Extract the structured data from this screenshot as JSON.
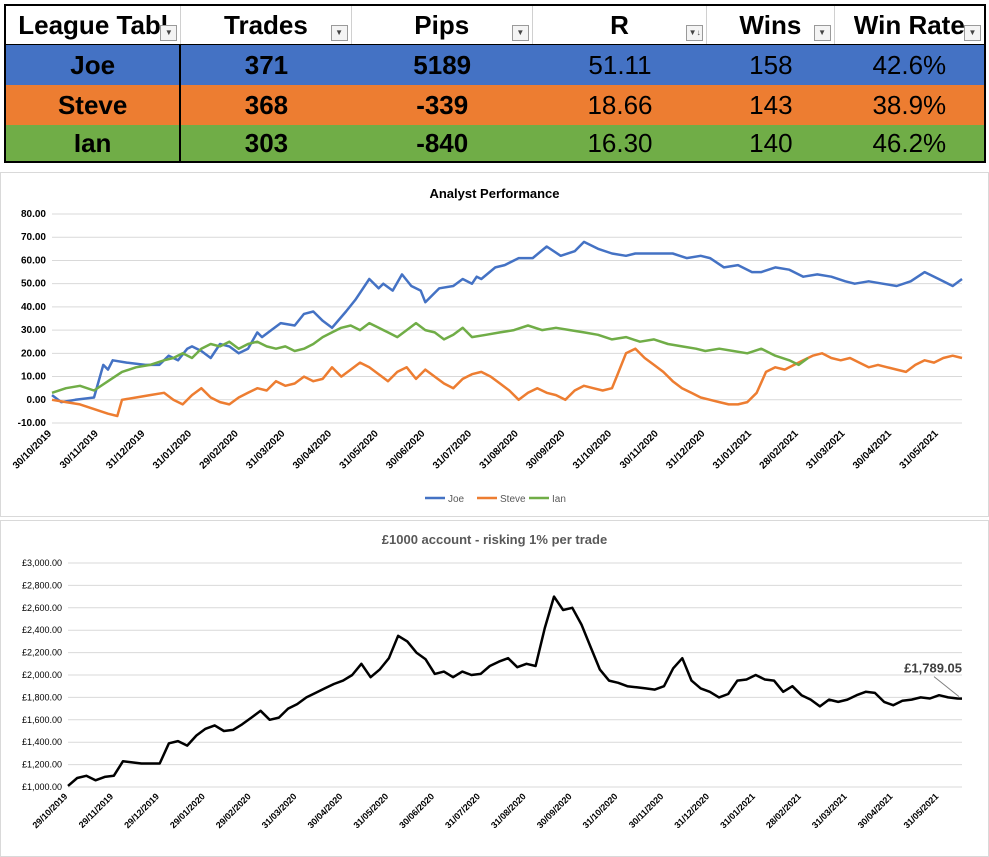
{
  "table": {
    "headers": [
      "League Tabl",
      "Trades",
      "Pips",
      "R",
      "Wins",
      "Win Rate"
    ],
    "rows": [
      {
        "name": "Joe",
        "trades": "371",
        "pips": "5189",
        "r": "51.11",
        "wins": "158",
        "win_rate": "42.6%",
        "color": "#4472C4"
      },
      {
        "name": "Steve",
        "trades": "368",
        "pips": "-339",
        "r": "18.66",
        "wins": "143",
        "win_rate": "38.9%",
        "color": "#ED7D31"
      },
      {
        "name": "Ian",
        "trades": "303",
        "pips": "-840",
        "r": "16.30",
        "wins": "140",
        "win_rate": "46.2%",
        "color": "#70AD47"
      }
    ]
  },
  "chart_data": [
    {
      "type": "line",
      "title": "Analyst Performance",
      "ylim": [
        -10,
        80
      ],
      "yticks": [
        "-10.00",
        "0.00",
        "10.00",
        "20.00",
        "30.00",
        "40.00",
        "50.00",
        "60.00",
        "70.00",
        "80.00"
      ],
      "xticks": [
        "30/10/2019",
        "30/11/2019",
        "31/12/2019",
        "31/01/2020",
        "29/02/2020",
        "31/03/2020",
        "30/04/2020",
        "31/05/2020",
        "30/06/2020",
        "31/07/2020",
        "31/08/2020",
        "30/09/2020",
        "31/10/2020",
        "30/11/2020",
        "31/12/2020",
        "31/01/2021",
        "28/02/2021",
        "31/03/2021",
        "30/04/2021",
        "31/05/2021"
      ],
      "grid": true,
      "legend": "bottom",
      "x_index_range": [
        0,
        19.5
      ],
      "series": [
        {
          "name": "Joe",
          "color": "#4472C4",
          "x": [
            0,
            0.2,
            0.5,
            0.9,
            1.1,
            1.2,
            1.3,
            1.6,
            2.0,
            2.3,
            2.5,
            2.7,
            2.9,
            3.0,
            3.2,
            3.4,
            3.6,
            3.8,
            4.0,
            4.2,
            4.4,
            4.5,
            4.7,
            4.9,
            5.2,
            5.4,
            5.6,
            5.8,
            6.0,
            6.3,
            6.5,
            6.8,
            7.0,
            7.1,
            7.3,
            7.5,
            7.7,
            7.9,
            8.0,
            8.3,
            8.6,
            8.8,
            9.0,
            9.1,
            9.2,
            9.5,
            9.7,
            10.0,
            10.3,
            10.6,
            10.9,
            11.2,
            11.4,
            11.7,
            12.0,
            12.3,
            12.5,
            12.8,
            13.0,
            13.3,
            13.6,
            13.9,
            14.1,
            14.4,
            14.7,
            15.0,
            15.2,
            15.5,
            15.8,
            16.1,
            16.4,
            16.7,
            17.0,
            17.2,
            17.5,
            17.8,
            18.1,
            18.4,
            18.7,
            19.0,
            19.3,
            19.5
          ],
          "y": [
            2,
            -1,
            0,
            1,
            15,
            13,
            17,
            16,
            15,
            15,
            19,
            17,
            22,
            23,
            21,
            18,
            24,
            23,
            20,
            22,
            29,
            27,
            30,
            33,
            32,
            37,
            38,
            34,
            31,
            38,
            43,
            52,
            48,
            50,
            47,
            54,
            49,
            47,
            42,
            48,
            49,
            52,
            50,
            53,
            52,
            57,
            58,
            61,
            61,
            66,
            62,
            64,
            68,
            65,
            63,
            62,
            63,
            63,
            63,
            63,
            61,
            62,
            61,
            57,
            58,
            55,
            55,
            57,
            56,
            53,
            54,
            53,
            51,
            50,
            51,
            50,
            49,
            51,
            55,
            52,
            49,
            52
          ]
        },
        {
          "name": "Steve",
          "color": "#ED7D31",
          "x": [
            0,
            0.3,
            0.6,
            0.9,
            1.2,
            1.4,
            1.5,
            1.8,
            2.1,
            2.4,
            2.6,
            2.8,
            3.0,
            3.2,
            3.4,
            3.6,
            3.8,
            4.0,
            4.2,
            4.4,
            4.6,
            4.8,
            5.0,
            5.2,
            5.4,
            5.6,
            5.8,
            6.0,
            6.2,
            6.4,
            6.6,
            6.8,
            7.0,
            7.2,
            7.4,
            7.6,
            7.8,
            8.0,
            8.2,
            8.4,
            8.6,
            8.8,
            9.0,
            9.2,
            9.4,
            9.6,
            9.8,
            10.0,
            10.2,
            10.4,
            10.6,
            10.8,
            11.0,
            11.2,
            11.4,
            11.6,
            11.8,
            12.0,
            12.1,
            12.3,
            12.5,
            12.7,
            12.9,
            13.1,
            13.3,
            13.5,
            13.7,
            13.9,
            14.1,
            14.3,
            14.5,
            14.7,
            14.9,
            15.1,
            15.3,
            15.5,
            15.7,
            15.9,
            16.1,
            16.3,
            16.5,
            16.7,
            16.9,
            17.1,
            17.3,
            17.5,
            17.7,
            17.9,
            18.1,
            18.3,
            18.5,
            18.7,
            18.9,
            19.1,
            19.3,
            19.5
          ],
          "y": [
            0,
            -1,
            -2,
            -4,
            -6,
            -7,
            0,
            1,
            2,
            3,
            0,
            -2,
            2,
            5,
            1,
            -1,
            -2,
            1,
            3,
            5,
            4,
            8,
            6,
            7,
            10,
            8,
            9,
            14,
            10,
            13,
            16,
            14,
            11,
            8,
            12,
            14,
            9,
            13,
            10,
            7,
            5,
            9,
            11,
            12,
            10,
            7,
            4,
            0,
            3,
            5,
            3,
            2,
            0,
            4,
            6,
            5,
            4,
            5,
            10,
            20,
            22,
            18,
            15,
            12,
            8,
            5,
            3,
            1,
            0,
            -1,
            -2,
            -2,
            -1,
            3,
            12,
            14,
            13,
            15,
            17,
            19,
            20,
            18,
            17,
            18,
            16,
            14,
            15,
            14,
            13,
            12,
            15,
            17,
            16,
            18,
            19,
            18
          ]
        },
        {
          "name": "Ian",
          "color": "#70AD47",
          "x": [
            0,
            0.3,
            0.6,
            0.9,
            1.2,
            1.5,
            1.8,
            2.1,
            2.4,
            2.6,
            2.8,
            3.0,
            3.2,
            3.4,
            3.6,
            3.8,
            4.0,
            4.2,
            4.4,
            4.6,
            4.8,
            5.0,
            5.2,
            5.4,
            5.6,
            5.8,
            6.0,
            6.2,
            6.4,
            6.6,
            6.8,
            7.0,
            7.2,
            7.4,
            7.6,
            7.8,
            8.0,
            8.2,
            8.4,
            8.6,
            8.8,
            9.0,
            9.3,
            9.6,
            9.9,
            10.2,
            10.5,
            10.8,
            11.1,
            11.4,
            11.7,
            12.0,
            12.3,
            12.6,
            12.9,
            13.2,
            13.5,
            13.8,
            14.0,
            14.3,
            14.6,
            14.9,
            15.2,
            15.5,
            15.8,
            16.0,
            16.2
          ],
          "y": [
            3,
            5,
            6,
            4,
            8,
            12,
            14,
            15,
            17,
            18,
            20,
            18,
            22,
            24,
            23,
            25,
            22,
            24,
            25,
            23,
            22,
            23,
            21,
            22,
            24,
            27,
            29,
            31,
            32,
            30,
            33,
            31,
            29,
            27,
            30,
            33,
            30,
            29,
            26,
            28,
            31,
            27,
            28,
            29,
            30,
            32,
            30,
            31,
            30,
            29,
            28,
            26,
            27,
            25,
            26,
            24,
            23,
            22,
            21,
            22,
            21,
            20,
            22,
            19,
            17,
            15,
            18
          ]
        }
      ]
    },
    {
      "type": "line",
      "title": "£1000 account - risking 1% per trade",
      "ylim": [
        1000,
        3000
      ],
      "yticks": [
        "£1,000.00",
        "£1,200.00",
        "£1,400.00",
        "£1,600.00",
        "£1,800.00",
        "£2,000.00",
        "£2,200.00",
        "£2,400.00",
        "£2,600.00",
        "£2,800.00",
        "£3,000.00"
      ],
      "xticks": [
        "29/10/2019",
        "29/11/2019",
        "29/12/2019",
        "29/01/2020",
        "29/02/2020",
        "31/03/2020",
        "30/04/2020",
        "31/05/2020",
        "30/06/2020",
        "31/07/2020",
        "31/08/2020",
        "30/09/2020",
        "31/10/2020",
        "30/11/2020",
        "31/12/2020",
        "31/01/2021",
        "28/02/2021",
        "31/03/2021",
        "30/04/2021",
        "31/05/2021"
      ],
      "grid": true,
      "annotation": "£1,789.05",
      "x_index_range": [
        0,
        19.5
      ],
      "series": [
        {
          "name": "",
          "color": "#000000",
          "x": [
            0,
            0.2,
            0.4,
            0.6,
            0.8,
            1.0,
            1.2,
            1.4,
            1.6,
            2.0,
            2.2,
            2.4,
            2.6,
            2.8,
            3.0,
            3.2,
            3.4,
            3.6,
            3.8,
            4.0,
            4.2,
            4.4,
            4.6,
            4.8,
            5.0,
            5.2,
            5.4,
            5.6,
            5.8,
            6.0,
            6.2,
            6.4,
            6.6,
            6.8,
            7.0,
            7.2,
            7.4,
            7.6,
            7.8,
            8.0,
            8.2,
            8.4,
            8.6,
            8.8,
            9.0,
            9.2,
            9.4,
            9.6,
            9.8,
            10.0,
            10.2,
            10.4,
            10.6,
            10.8,
            11.0,
            11.2,
            11.4,
            11.6,
            11.8,
            12.0,
            12.2,
            12.4,
            12.6,
            12.8,
            13.0,
            13.2,
            13.4,
            13.6,
            13.8,
            14.0,
            14.2,
            14.4,
            14.6,
            14.8,
            15.0,
            15.2,
            15.4,
            15.6,
            15.8,
            16.0,
            16.2,
            16.4,
            16.6,
            16.8,
            17.0,
            17.2,
            17.4,
            17.6,
            17.8,
            18.0,
            18.2,
            18.4,
            18.6,
            18.8,
            19.0,
            19.2,
            19.4,
            19.5
          ],
          "y": [
            1010,
            1080,
            1100,
            1060,
            1090,
            1100,
            1230,
            1220,
            1210,
            1210,
            1390,
            1410,
            1370,
            1460,
            1520,
            1550,
            1500,
            1510,
            1560,
            1620,
            1680,
            1600,
            1620,
            1700,
            1740,
            1800,
            1840,
            1880,
            1920,
            1950,
            2000,
            2100,
            1980,
            2050,
            2150,
            2350,
            2300,
            2200,
            2140,
            2010,
            2030,
            1980,
            2030,
            2000,
            2010,
            2080,
            2120,
            2150,
            2070,
            2100,
            2080,
            2420,
            2700,
            2580,
            2600,
            2450,
            2250,
            2050,
            1950,
            1930,
            1900,
            1890,
            1880,
            1870,
            1900,
            2060,
            2150,
            1950,
            1880,
            1850,
            1800,
            1830,
            1950,
            1960,
            2000,
            1960,
            1950,
            1850,
            1900,
            1820,
            1780,
            1720,
            1780,
            1760,
            1780,
            1820,
            1850,
            1840,
            1760,
            1730,
            1770,
            1780,
            1800,
            1790,
            1820,
            1800,
            1790,
            1789
          ]
        }
      ]
    }
  ]
}
